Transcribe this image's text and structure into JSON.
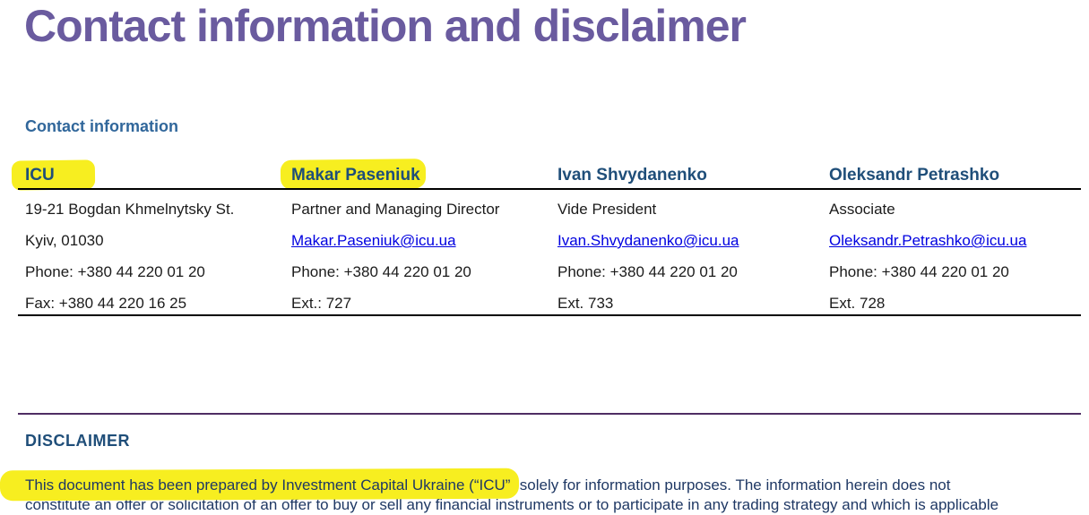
{
  "page": {
    "title": "Contact information and disclaimer"
  },
  "contact_section": {
    "heading": "Contact information",
    "columns": [
      {
        "header": "ICU",
        "rows": [
          "19-21 Bogdan Khmelnytsky St.",
          "Kyiv, 01030",
          "Phone: +380 44 220 01 20",
          "Fax: +380 44 220 16 25"
        ]
      },
      {
        "header": "Makar Paseniuk",
        "rows": [
          "Partner and Managing Director",
          "Makar.Paseniuk@icu.ua",
          "Phone: +380 44 220 01 20",
          "Ext.: 727"
        ]
      },
      {
        "header": "Ivan Shvydanenko",
        "rows": [
          "Vide President",
          "Ivan.Shvydanenko@icu.ua",
          "Phone: +380 44 220 01 20",
          "Ext. 733"
        ]
      },
      {
        "header": "Oleksandr Petrashko",
        "rows": [
          "Associate",
          "Oleksandr.Petrashko@icu.ua",
          "Phone: +380 44 220 01 20",
          "Ext. 728"
        ]
      }
    ]
  },
  "disclaimer_section": {
    "heading": "DISCLAIMER",
    "line1_highlighted": "This document has been prepared by Investment Capital Ukraine (“ICU”",
    "line1_rest": ") solely for information purposes. The information herein does not",
    "line2_clipped": "constitute an offer or solicitation of an offer to buy or sell any financial instruments or to participate in any trading strategy and which is applicable"
  },
  "highlights": {
    "color": "#f7ee20",
    "marked_text": [
      "ICU",
      "Makar Paseniuk",
      "This document has been prepared by Investment Capital Ukraine (“ICU”"
    ]
  },
  "colors": {
    "title_purple": "#6a5b9f",
    "section_heading_blue": "#31679b",
    "table_header_blue": "#1f4e79",
    "link_blue": "#0000e0",
    "disclaimer_navy": "#1f3864",
    "rule_black": "#000000",
    "rule_purple": "#4f2d63",
    "highlight_yellow": "#f7ee20"
  }
}
